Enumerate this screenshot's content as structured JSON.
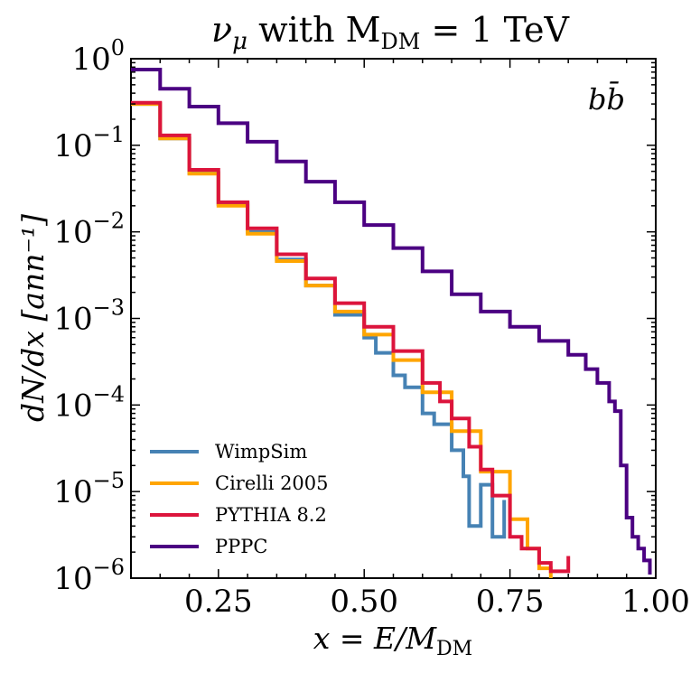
{
  "chart_data": {
    "type": "line",
    "title": "νμ with MDM = 1 TeV",
    "title_parts": {
      "nu": "ν",
      "mu": "μ",
      "with": " with M",
      "dm": "DM",
      "rest": " = 1 TeV"
    },
    "xlabel_parts": {
      "a": "x = E/M",
      "b": "DM"
    },
    "ylabel": "dN/dx [ann⁻¹]",
    "annotation": "bb̄",
    "xlim": [
      0.1,
      1.0
    ],
    "ylim": [
      1e-06,
      1
    ],
    "y_log": true,
    "x_ticks": [
      "0.25",
      "0.50",
      "0.75",
      "1.00"
    ],
    "x_tick_values": [
      0.25,
      0.5,
      0.75,
      1.0
    ],
    "y_ticks": [
      {
        "base": "10",
        "exp": "0",
        "value": 1
      },
      {
        "base": "10",
        "exp": "−1",
        "value": 0.1
      },
      {
        "base": "10",
        "exp": "−2",
        "value": 0.01
      },
      {
        "base": "10",
        "exp": "−3",
        "value": 0.001
      },
      {
        "base": "10",
        "exp": "−4",
        "value": 0.0001
      },
      {
        "base": "10",
        "exp": "−5",
        "value": 1e-05
      },
      {
        "base": "10",
        "exp": "−6",
        "value": 1e-06
      }
    ],
    "series": [
      {
        "name": "WimpSim",
        "color": "#4682b4",
        "x": [
          0.1,
          0.15,
          0.2,
          0.25,
          0.3,
          0.35,
          0.4,
          0.45,
          0.5,
          0.52,
          0.55,
          0.57,
          0.6,
          0.62,
          0.65,
          0.67,
          0.68,
          0.7,
          0.72,
          0.74
        ],
        "y": [
          0.3,
          0.12,
          0.048,
          0.021,
          0.01,
          0.0048,
          0.0024,
          0.0011,
          0.0006,
          0.0004,
          0.00022,
          0.00016,
          8e-05,
          6e-05,
          3e-05,
          1.5e-05,
          4e-06,
          1.2e-05,
          3e-06,
          8e-06
        ]
      },
      {
        "name": "Cirelli 2005",
        "color": "#ffa500",
        "x": [
          0.1,
          0.15,
          0.2,
          0.25,
          0.3,
          0.35,
          0.4,
          0.45,
          0.5,
          0.55,
          0.6,
          0.65,
          0.7,
          0.75,
          0.78,
          0.8,
          0.82
        ],
        "y": [
          0.3,
          0.12,
          0.047,
          0.02,
          0.0095,
          0.0046,
          0.0024,
          0.0012,
          0.00065,
          0.00033,
          0.00014,
          5e-05,
          1.7e-05,
          4.8e-06,
          2.2e-06,
          1.3e-06,
          1e-06
        ]
      },
      {
        "name": "PYTHIA 8.2",
        "color": "#dc143c",
        "x": [
          0.1,
          0.15,
          0.2,
          0.25,
          0.3,
          0.35,
          0.4,
          0.45,
          0.5,
          0.55,
          0.6,
          0.63,
          0.65,
          0.68,
          0.7,
          0.72,
          0.75,
          0.77,
          0.8,
          0.82,
          0.85
        ],
        "y": [
          0.31,
          0.13,
          0.052,
          0.022,
          0.011,
          0.0055,
          0.0029,
          0.0015,
          0.0008,
          0.00042,
          0.00018,
          0.00011,
          7e-05,
          3.3e-05,
          1.8e-05,
          9e-06,
          3e-06,
          2.2e-06,
          1.5e-06,
          1.2e-06,
          1.8e-06
        ]
      },
      {
        "name": "PPPC",
        "color": "#4b0082",
        "x": [
          0.1,
          0.15,
          0.2,
          0.25,
          0.3,
          0.35,
          0.4,
          0.45,
          0.5,
          0.55,
          0.6,
          0.65,
          0.7,
          0.75,
          0.8,
          0.85,
          0.88,
          0.9,
          0.92,
          0.93,
          0.94,
          0.95,
          0.96,
          0.97,
          0.98,
          0.99
        ],
        "y": [
          0.75,
          0.45,
          0.28,
          0.18,
          0.11,
          0.065,
          0.038,
          0.022,
          0.012,
          0.0065,
          0.0035,
          0.0019,
          0.0012,
          0.0008,
          0.00055,
          0.00038,
          0.00026,
          0.00018,
          0.00011,
          8.5e-05,
          2e-05,
          5e-06,
          3e-06,
          2.2e-06,
          1.6e-06,
          1.1e-06
        ]
      }
    ]
  }
}
